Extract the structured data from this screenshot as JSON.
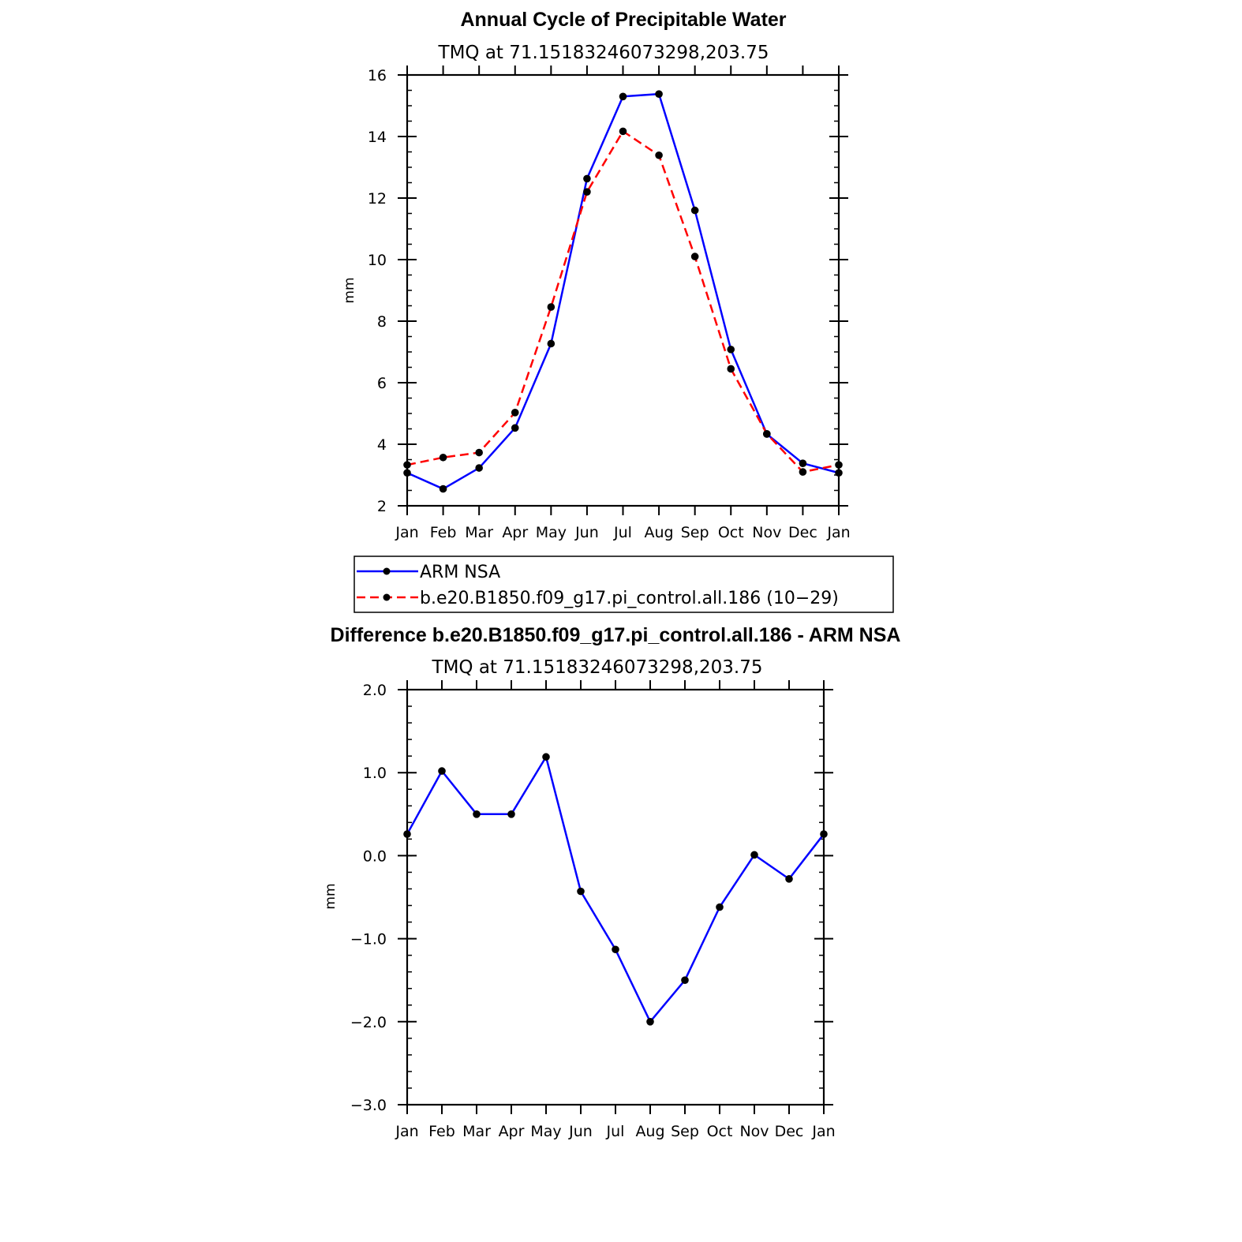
{
  "chart_data": [
    {
      "type": "line",
      "title": "Annual Cycle of Precipitable Water",
      "subtitle": "TMQ at 71.15183246073298,203.75",
      "ylabel": "mm",
      "xlabel": "",
      "categories": [
        "Jan",
        "Feb",
        "Mar",
        "Apr",
        "May",
        "Jun",
        "Jul",
        "Aug",
        "Sep",
        "Oct",
        "Nov",
        "Dec",
        "Jan"
      ],
      "ylim": [
        2,
        16
      ],
      "yticks": [
        2,
        4,
        6,
        8,
        10,
        12,
        14,
        16
      ],
      "ytick_labels": [
        "2",
        "4",
        "6",
        "8",
        "10",
        "12",
        "14",
        "16"
      ],
      "grid": false,
      "series": [
        {
          "name": "ARM NSA",
          "color": "#0000ff",
          "dash": "solid",
          "values": [
            3.07,
            2.55,
            3.23,
            4.53,
            7.27,
            12.63,
            15.3,
            15.38,
            11.6,
            7.08,
            4.33,
            3.38,
            3.07
          ]
        },
        {
          "name": "b.e20.B1850.f09_g17.pi_control.all.186 (10−29)",
          "color": "#ff0000",
          "dash": "dashed",
          "values": [
            3.33,
            3.57,
            3.73,
            5.03,
            8.46,
            12.2,
            14.17,
            13.39,
            10.1,
            6.45,
            4.34,
            3.1,
            3.33
          ]
        }
      ],
      "legend_position": "bottom"
    },
    {
      "type": "line",
      "title": "Difference b.e20.B1850.f09_g17.pi_control.all.186 - ARM NSA",
      "subtitle": "TMQ at 71.15183246073298,203.75",
      "ylabel": "mm",
      "xlabel": "",
      "categories": [
        "Jan",
        "Feb",
        "Mar",
        "Apr",
        "May",
        "Jun",
        "Jul",
        "Aug",
        "Sep",
        "Oct",
        "Nov",
        "Dec",
        "Jan"
      ],
      "ylim": [
        -3.0,
        2.0
      ],
      "yticks": [
        -3,
        -2,
        -1,
        0,
        1,
        2
      ],
      "ytick_labels": [
        "−3.0",
        "−2.0",
        "−1.0",
        "0.0",
        "1.0",
        "2.0"
      ],
      "grid": false,
      "series": [
        {
          "color": "#0000ff",
          "dash": "solid",
          "values": [
            0.26,
            1.02,
            0.5,
            0.5,
            1.19,
            -0.43,
            -1.13,
            -2.0,
            -1.5,
            -0.62,
            0.01,
            -0.28,
            0.26
          ]
        }
      ]
    }
  ]
}
